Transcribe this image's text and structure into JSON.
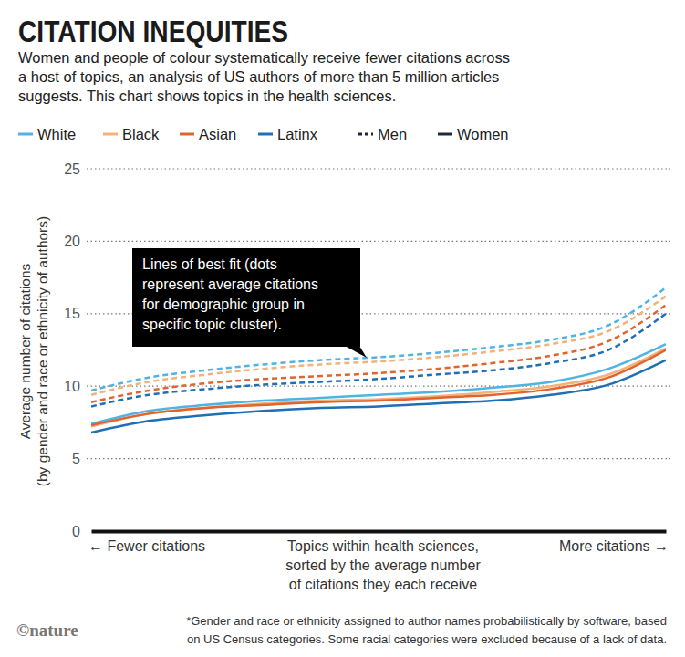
{
  "chart_data": {
    "type": "line",
    "title": "CITATION INEQUITIES",
    "subtitle": [
      "Women and people of colour systematically receive fewer citations across",
      "a host of topics, an analysis of US authors of more than 5 million articles",
      "suggests. This chart shows topics in the health sciences."
    ],
    "ylabel": [
      "Average number of citations",
      "(by gender and race or ethnicity of authors)"
    ],
    "xlabel": [
      "Topics within health sciences,",
      "sorted by the average number",
      "of citations they each receive"
    ],
    "xlabel_left": "← Fewer citations",
    "xlabel_right": "More citations →",
    "annotation": [
      "Lines of best fit (dots",
      "represent average citations",
      "for demographic group in",
      "specific topic cluster)."
    ],
    "footnote": [
      "*Gender and race or ethnicity assigned to author names probabilistically by software, based",
      "on US Census categories. Some racial categories were excluded because of a lack of data."
    ],
    "source": "©nature",
    "x": [
      0,
      1,
      2,
      3,
      4,
      5,
      6,
      7,
      8,
      9,
      10
    ],
    "xlim": [
      0,
      10
    ],
    "ylim": [
      0,
      25
    ],
    "yticks": [
      0,
      5,
      10,
      15,
      20,
      25
    ],
    "grid": true,
    "tick_labels": "y",
    "series": [
      {
        "race": "White",
        "gender": "Men",
        "color": "#4fb3e3",
        "line_style": "dashed",
        "values": [
          9.7,
          10.6,
          11.1,
          11.5,
          11.8,
          12.0,
          12.3,
          12.7,
          13.2,
          14.2,
          16.8
        ]
      },
      {
        "race": "Black",
        "gender": "Men",
        "color": "#f2b27a",
        "line_style": "dashed",
        "values": [
          9.4,
          10.3,
          10.8,
          11.2,
          11.5,
          11.7,
          12.0,
          12.4,
          12.9,
          13.8,
          16.2
        ]
      },
      {
        "race": "Asian",
        "gender": "Men",
        "color": "#e0642f",
        "line_style": "dashed",
        "values": [
          8.9,
          9.7,
          10.2,
          10.5,
          10.7,
          10.9,
          11.2,
          11.6,
          12.1,
          13.1,
          15.6
        ]
      },
      {
        "race": "Latinx",
        "gender": "Men",
        "color": "#1f6fb5",
        "line_style": "dashed",
        "values": [
          8.6,
          9.4,
          9.8,
          10.1,
          10.3,
          10.5,
          10.8,
          11.1,
          11.6,
          12.5,
          15.0
        ]
      },
      {
        "race": "White",
        "gender": "Women",
        "color": "#4fb3e3",
        "line_style": "solid",
        "values": [
          7.4,
          8.3,
          8.7,
          9.0,
          9.2,
          9.4,
          9.6,
          9.9,
          10.3,
          11.2,
          12.9
        ]
      },
      {
        "race": "Black",
        "gender": "Women",
        "color": "#f2b27a",
        "line_style": "solid",
        "values": [
          7.2,
          8.1,
          8.5,
          8.8,
          9.0,
          9.1,
          9.3,
          9.6,
          10.0,
          10.8,
          12.6
        ]
      },
      {
        "race": "Asian",
        "gender": "Women",
        "color": "#e0642f",
        "line_style": "solid",
        "values": [
          7.3,
          8.1,
          8.5,
          8.7,
          8.9,
          9.0,
          9.2,
          9.4,
          9.8,
          10.6,
          12.5
        ]
      },
      {
        "race": "Latinx",
        "gender": "Women",
        "color": "#1f6fb5",
        "line_style": "solid",
        "values": [
          6.8,
          7.6,
          8.0,
          8.3,
          8.5,
          8.6,
          8.8,
          9.0,
          9.4,
          10.1,
          11.8
        ]
      }
    ]
  }
}
